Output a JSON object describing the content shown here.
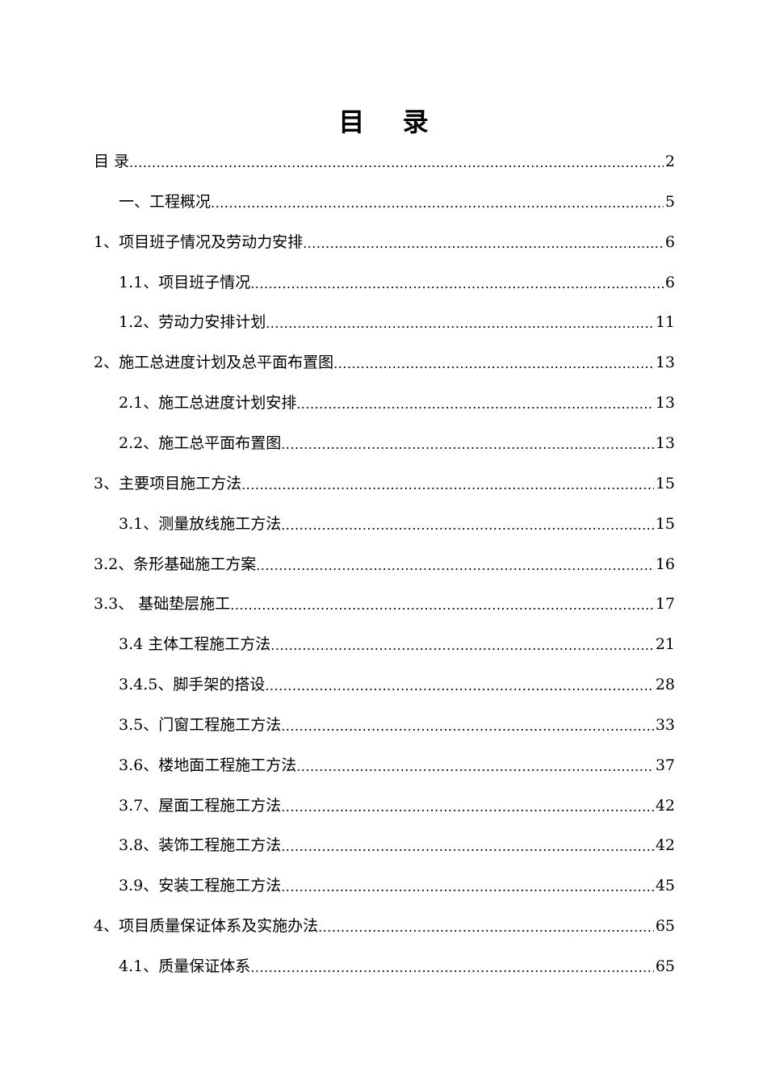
{
  "title": "目 录",
  "entries": [
    {
      "text": "目 录",
      "page": "2",
      "level": 0
    },
    {
      "text": "一、工程概况",
      "page": "5",
      "level": 1
    },
    {
      "text": "1、项目班子情况及劳动力安排",
      "page": "6",
      "level": 0
    },
    {
      "text": "1.1、项目班子情况",
      "page": "6",
      "level": 1
    },
    {
      "text": "1.2、劳动力安排计划",
      "page": "11",
      "level": 1
    },
    {
      "text": "2、施工总进度计划及总平面布置图",
      "page": "13",
      "level": 0
    },
    {
      "text": "2.1、施工总进度计划安排",
      "page": "13",
      "level": 1
    },
    {
      "text": "2.2、施工总平面布置图",
      "page": "13",
      "level": 1
    },
    {
      "text": "3、主要项目施工方法",
      "page": "15",
      "level": 0
    },
    {
      "text": "3.1、测量放线施工方法",
      "page": "15",
      "level": 1
    },
    {
      "text": "3.2、条形基础施工方案",
      "page": "16",
      "level": 0
    },
    {
      "text": "3.3、 基础垫层施工",
      "page": "17",
      "level": 0
    },
    {
      "text": "3.4 主体工程施工方法",
      "page": "21",
      "level": 1
    },
    {
      "text": "3.4.5、脚手架的搭设",
      "page": "28",
      "level": 1
    },
    {
      "text": "3.5、门窗工程施工方法",
      "page": "33",
      "level": 1
    },
    {
      "text": "3.6、楼地面工程施工方法",
      "page": "37",
      "level": 1
    },
    {
      "text": "3.7、屋面工程施工方法",
      "page": "42",
      "level": 1
    },
    {
      "text": "3.8、装饰工程施工方法",
      "page": "42",
      "level": 1
    },
    {
      "text": "3.9、安装工程施工方法",
      "page": "45",
      "level": 1
    },
    {
      "text": "4、项目质量保证体系及实施办法",
      "page": "65",
      "level": 0
    },
    {
      "text": "4.1、质量保证体系",
      "page": "65",
      "level": 1
    }
  ]
}
